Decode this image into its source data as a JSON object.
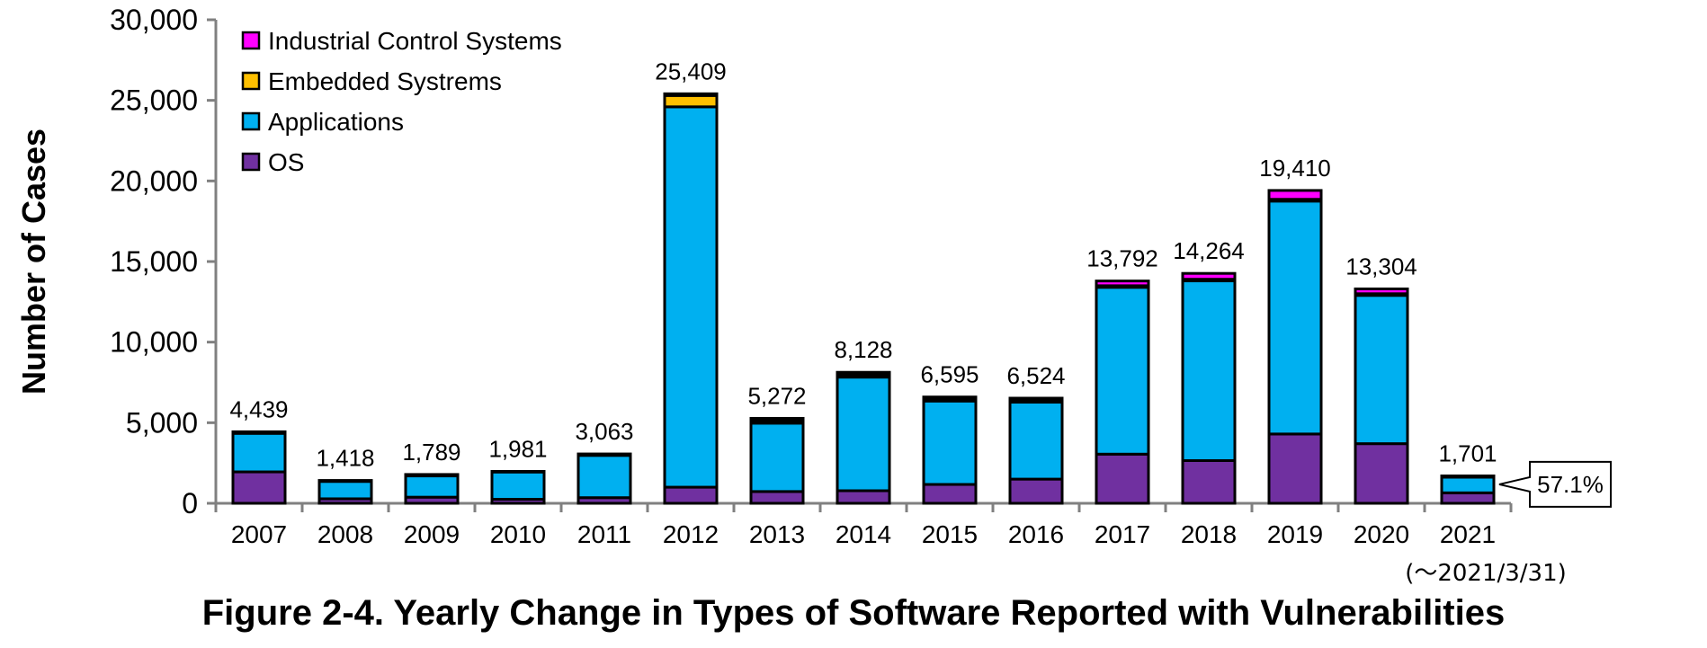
{
  "colors": {
    "ics": "#ff00ff",
    "embedded": "#ffc000",
    "applications": "#00b0f0",
    "os": "#7030a0",
    "outline": "#000000",
    "axis": "#808080"
  },
  "caption": "Figure 2-4. Yearly Change in Types of Software Reported with Vulnerabilities",
  "chart_data": {
    "type": "bar",
    "stacked": true,
    "title": "",
    "xlabel": "",
    "ylabel": "Number of Cases",
    "ylim": [
      0,
      30000
    ],
    "yticks": [
      0,
      5000,
      10000,
      15000,
      20000,
      25000,
      30000
    ],
    "ytick_labels": [
      "0",
      "5,000",
      "10,000",
      "15,000",
      "20,000",
      "25,000",
      "30,000"
    ],
    "grid": false,
    "legend_position": "top-left",
    "categories": [
      "2007",
      "2008",
      "2009",
      "2010",
      "2011",
      "2012",
      "2013",
      "2014",
      "2015",
      "2016",
      "2017",
      "2018",
      "2019",
      "2020",
      "2021"
    ],
    "category_sublabels": [
      "",
      "",
      "",
      "",
      "",
      "",
      "",
      "",
      "",
      "",
      "",
      "",
      "",
      "",
      "(～2021/3/31)"
    ],
    "series": [
      {
        "name": "OS",
        "color": "#7030a0",
        "values": [
          1950,
          280,
          380,
          250,
          350,
          1000,
          730,
          780,
          1170,
          1500,
          3050,
          2650,
          4300,
          3700,
          650
        ]
      },
      {
        "name": "Applications",
        "color": "#00b0f0",
        "values": [
          2389,
          1078,
          1319,
          1691,
          2623,
          23600,
          4242,
          7048,
          5175,
          4774,
          10350,
          11150,
          14450,
          9200,
          971
        ]
      },
      {
        "name": "Embedded Systrems",
        "color": "#ffc000",
        "values": [
          50,
          30,
          40,
          20,
          40,
          700,
          150,
          150,
          100,
          100,
          100,
          100,
          110,
          104,
          30
        ]
      },
      {
        "name": "Industrial Control Systems",
        "color": "#ff00ff",
        "values": [
          50,
          30,
          50,
          20,
          50,
          109,
          150,
          150,
          150,
          150,
          292,
          364,
          550,
          300,
          50
        ]
      }
    ],
    "totals": [
      4439,
      1418,
      1789,
      1981,
      3063,
      25409,
      5272,
      8128,
      6595,
      6524,
      13792,
      14264,
      19410,
      13304,
      1701
    ],
    "total_labels": [
      "4,439",
      "1,418",
      "1,789",
      "1,981",
      "3,063",
      "25,409",
      "5,272",
      "8,128",
      "6,595",
      "6,524",
      "13,792",
      "14,264",
      "19,410",
      "13,304",
      "1,701"
    ],
    "legend_order": [
      "Industrial Control Systems",
      "Embedded Systrems",
      "Applications",
      "OS"
    ],
    "annotation": {
      "text": "57.1%",
      "category": "2021"
    }
  }
}
